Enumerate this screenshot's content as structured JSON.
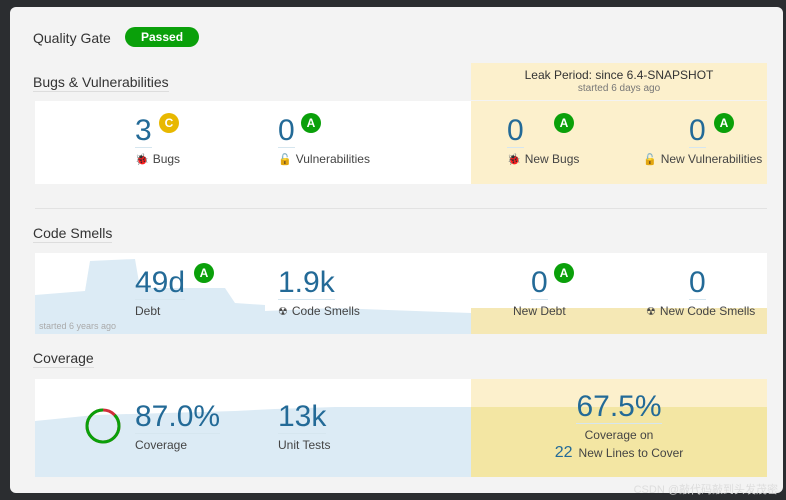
{
  "quality_gate": {
    "title": "Quality Gate",
    "status": "Passed",
    "status_color": "#0aa00a"
  },
  "leak": {
    "title": "Leak Period: since 6.4-SNAPSHOT",
    "subtitle": "started 6 days ago"
  },
  "bugs": {
    "title": "Bugs & Vulnerabilities",
    "bugs": {
      "value": "3",
      "rating": "C",
      "label": "Bugs"
    },
    "vulns": {
      "value": "0",
      "rating": "A",
      "label": "Vulnerabilities"
    },
    "new_bugs": {
      "value": "0",
      "rating": "A",
      "label": "New Bugs"
    },
    "new_vulns": {
      "value": "0",
      "rating": "A",
      "label": "New Vulnerabilities"
    }
  },
  "smells": {
    "title": "Code Smells",
    "started": "started 6 years ago",
    "debt": {
      "value": "49d",
      "rating": "A",
      "label": "Debt"
    },
    "code_smells": {
      "value": "1.9k",
      "label": "Code Smells"
    },
    "new_debt": {
      "value": "0",
      "rating": "A",
      "label": "New Debt"
    },
    "new_smells": {
      "value": "0",
      "label": "New Code Smells"
    }
  },
  "coverage": {
    "title": "Coverage",
    "coverage": {
      "value": "87.0%",
      "label": "Coverage",
      "percent": 87
    },
    "tests": {
      "value": "13k",
      "label": "Unit Tests"
    },
    "new_coverage": {
      "value": "67.5%",
      "label": "Coverage on",
      "lines": "22",
      "lines_label": "New Lines to Cover"
    }
  },
  "watermark": "CSDN @敲代码敲到头发茂密"
}
